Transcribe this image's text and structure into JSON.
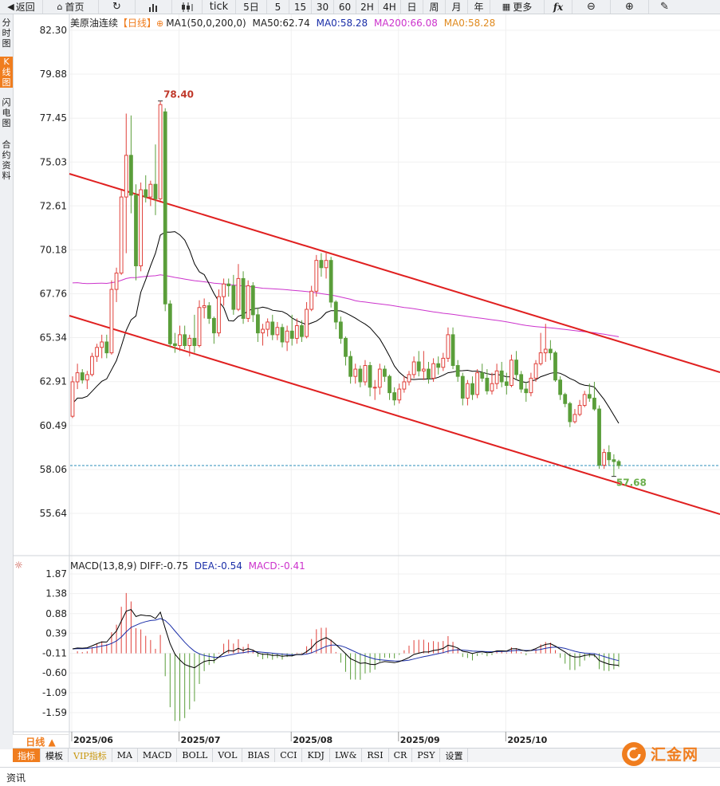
{
  "toolbar": {
    "back_label": "返回",
    "home_label": "首页",
    "tick_label": "tick",
    "periods": [
      "5日",
      "5",
      "15",
      "30",
      "60",
      "2H",
      "4H",
      "日",
      "周",
      "月",
      "年"
    ],
    "more_label": "更多",
    "fx_label": "fx"
  },
  "side_tabs": {
    "timeshare": "分时图",
    "kline": "K线图",
    "flash": "闪电图",
    "contract": "合约资料"
  },
  "legend": {
    "name": "美原油连续",
    "period": "【日线】",
    "ma_spec": "MA1(50,0,200,0)",
    "ma50": "MA50:62.74",
    "ma0_a": "MA0:58.28",
    "ma200": "MA200:66.08",
    "ma0_b": "MA0:58.28"
  },
  "macd_legend": {
    "spec": "MACD(13,8,9)",
    "diff": "DIFF:-0.75",
    "dea": "DEA:-0.54",
    "macd": "MACD:-0.41"
  },
  "bottom": {
    "day_line": "日线 ▲",
    "tabs": [
      "指标",
      "模板",
      "VIP指标",
      "MA",
      "MACD",
      "BOLL",
      "VOL",
      "BIAS",
      "CCI",
      "KDJ",
      "LW&",
      "RSI",
      "CR",
      "PSY",
      "设置"
    ],
    "info_tab": "资讯",
    "logo_text": "汇金网"
  },
  "colors": {
    "up": "#e0413b",
    "down": "#5a9e3a",
    "ma50": "#000000",
    "ma200": "#cc33cc",
    "channel": "#e02020",
    "accent": "#f07d1e",
    "last_line": "#2b8fb8"
  },
  "chart_data": {
    "type": "candlestick",
    "y_ticks": [
      "82.30",
      "79.88",
      "77.45",
      "75.03",
      "72.61",
      "70.18",
      "67.76",
      "65.34",
      "62.91",
      "60.49",
      "58.06",
      "55.64"
    ],
    "x_ticks": [
      "2025/06",
      "2025/07",
      "2025/08",
      "2025/09",
      "2025/10"
    ],
    "high_label": "78.40",
    "low_label": "57.68",
    "last_price": 58.28,
    "candles": [
      [
        61.0,
        63.2,
        60.9,
        62.9
      ],
      [
        62.9,
        63.9,
        62.5,
        63.4
      ],
      [
        63.4,
        63.6,
        62.8,
        63.0
      ],
      [
        63.0,
        63.5,
        62.5,
        63.3
      ],
      [
        63.3,
        64.5,
        63.2,
        64.3
      ],
      [
        64.3,
        65.0,
        64.0,
        64.8
      ],
      [
        64.8,
        65.5,
        64.2,
        65.1
      ],
      [
        65.1,
        65.5,
        64.2,
        64.5
      ],
      [
        64.5,
        68.5,
        64.4,
        68.0
      ],
      [
        68.0,
        69.2,
        67.3,
        68.9
      ],
      [
        68.9,
        73.5,
        68.8,
        73.1
      ],
      [
        73.1,
        77.7,
        70.0,
        75.4
      ],
      [
        75.4,
        77.6,
        72.2,
        73.2
      ],
      [
        73.2,
        73.8,
        68.5,
        69.3
      ],
      [
        69.3,
        73.9,
        69.0,
        73.5
      ],
      [
        73.5,
        74.3,
        72.8,
        73.1
      ],
      [
        73.1,
        74.0,
        72.6,
        73.8
      ],
      [
        73.8,
        76.0,
        72.1,
        73.0
      ],
      [
        73.0,
        78.4,
        72.9,
        78.2
      ],
      [
        77.8,
        78.0,
        66.8,
        67.2
      ],
      [
        67.2,
        67.4,
        64.8,
        65.0
      ],
      [
        65.0,
        65.6,
        64.5,
        64.9
      ],
      [
        64.9,
        66.0,
        64.6,
        65.5
      ],
      [
        65.5,
        66.0,
        64.7,
        64.9
      ],
      [
        64.9,
        65.5,
        64.3,
        65.3
      ],
      [
        65.3,
        66.6,
        64.5,
        64.9
      ],
      [
        64.9,
        67.4,
        64.8,
        67.0
      ],
      [
        67.0,
        67.5,
        66.4,
        67.1
      ],
      [
        67.1,
        67.3,
        66.1,
        66.4
      ],
      [
        66.4,
        66.5,
        65.0,
        65.6
      ],
      [
        65.6,
        68.0,
        65.4,
        67.6
      ],
      [
        67.6,
        68.6,
        67.1,
        68.3
      ],
      [
        68.3,
        68.6,
        67.6,
        68.2
      ],
      [
        68.2,
        68.8,
        66.6,
        66.9
      ],
      [
        66.9,
        69.4,
        66.8,
        68.6
      ],
      [
        68.6,
        69.0,
        66.1,
        66.4
      ],
      [
        66.4,
        68.5,
        66.2,
        68.2
      ],
      [
        68.2,
        68.4,
        66.2,
        66.6
      ],
      [
        66.6,
        67.0,
        65.1,
        65.6
      ],
      [
        65.6,
        66.1,
        64.9,
        65.8
      ],
      [
        65.8,
        66.4,
        65.4,
        66.2
      ],
      [
        66.2,
        66.6,
        65.2,
        65.5
      ],
      [
        65.5,
        66.2,
        65.2,
        65.9
      ],
      [
        65.9,
        66.1,
        64.8,
        65.1
      ],
      [
        65.1,
        66.0,
        64.6,
        65.7
      ],
      [
        65.7,
        66.6,
        64.9,
        65.3
      ],
      [
        65.3,
        66.4,
        65.0,
        66.0
      ],
      [
        66.0,
        66.3,
        65.1,
        65.4
      ],
      [
        65.4,
        67.3,
        65.3,
        66.9
      ],
      [
        66.9,
        68.2,
        66.8,
        67.9
      ],
      [
        67.9,
        69.9,
        67.6,
        69.6
      ],
      [
        69.6,
        70.0,
        68.7,
        69.2
      ],
      [
        69.2,
        70.1,
        68.6,
        69.6
      ],
      [
        69.6,
        69.8,
        67.0,
        67.3
      ],
      [
        67.3,
        67.4,
        65.8,
        66.2
      ],
      [
        66.2,
        66.5,
        65.0,
        65.3
      ],
      [
        65.3,
        65.4,
        63.8,
        64.3
      ],
      [
        64.3,
        64.6,
        62.8,
        63.2
      ],
      [
        63.2,
        63.9,
        62.8,
        63.6
      ],
      [
        63.6,
        63.8,
        62.6,
        62.9
      ],
      [
        62.9,
        64.1,
        62.7,
        63.8
      ],
      [
        63.8,
        64.0,
        62.1,
        62.6
      ],
      [
        62.6,
        63.0,
        61.9,
        62.6
      ],
      [
        62.6,
        63.9,
        62.2,
        63.6
      ],
      [
        63.6,
        63.8,
        62.9,
        63.2
      ],
      [
        63.2,
        63.3,
        61.9,
        62.3
      ],
      [
        62.3,
        62.6,
        61.6,
        61.9
      ],
      [
        61.9,
        62.8,
        61.7,
        62.5
      ],
      [
        62.5,
        63.2,
        62.3,
        62.9
      ],
      [
        62.9,
        63.5,
        62.7,
        63.3
      ],
      [
        63.3,
        64.3,
        63.1,
        64.0
      ],
      [
        64.0,
        64.6,
        63.2,
        63.5
      ],
      [
        63.5,
        64.6,
        63.0,
        63.6
      ],
      [
        63.6,
        64.0,
        62.8,
        63.1
      ],
      [
        63.1,
        64.2,
        62.9,
        63.9
      ],
      [
        63.9,
        64.3,
        63.3,
        63.7
      ],
      [
        63.7,
        64.5,
        63.5,
        64.2
      ],
      [
        64.2,
        65.9,
        64.0,
        65.5
      ],
      [
        65.5,
        65.9,
        63.6,
        63.8
      ],
      [
        63.8,
        64.1,
        62.9,
        63.2
      ],
      [
        63.2,
        63.4,
        61.6,
        62.0
      ],
      [
        62.0,
        63.0,
        61.6,
        62.8
      ],
      [
        62.8,
        63.2,
        61.9,
        62.2
      ],
      [
        62.2,
        63.6,
        62.0,
        63.4
      ],
      [
        63.4,
        63.9,
        62.9,
        63.1
      ],
      [
        63.1,
        63.6,
        62.2,
        62.4
      ],
      [
        62.4,
        63.4,
        62.2,
        62.8
      ],
      [
        62.8,
        63.9,
        62.5,
        63.5
      ],
      [
        63.5,
        64.0,
        62.6,
        62.9
      ],
      [
        62.9,
        63.4,
        62.2,
        62.7
      ],
      [
        62.7,
        64.4,
        62.6,
        64.1
      ],
      [
        64.1,
        64.6,
        63.0,
        63.3
      ],
      [
        63.3,
        63.5,
        62.3,
        62.5
      ],
      [
        62.5,
        62.9,
        61.8,
        62.3
      ],
      [
        62.3,
        63.4,
        62.1,
        63.1
      ],
      [
        63.1,
        64.1,
        62.9,
        63.9
      ],
      [
        63.9,
        65.6,
        63.8,
        64.5
      ],
      [
        64.5,
        66.1,
        64.0,
        64.7
      ],
      [
        64.7,
        65.2,
        64.1,
        64.5
      ],
      [
        64.5,
        64.6,
        62.9,
        63.0
      ],
      [
        63.0,
        63.2,
        61.9,
        62.2
      ],
      [
        62.2,
        62.3,
        61.5,
        61.7
      ],
      [
        61.7,
        61.8,
        60.4,
        60.7
      ],
      [
        60.7,
        61.4,
        60.6,
        61.1
      ],
      [
        61.1,
        61.9,
        61.0,
        61.6
      ],
      [
        61.6,
        62.4,
        61.5,
        62.2
      ],
      [
        62.2,
        62.8,
        61.8,
        62.0
      ],
      [
        62.0,
        62.9,
        61.3,
        61.4
      ],
      [
        61.4,
        61.6,
        58.1,
        58.3
      ],
      [
        58.3,
        59.2,
        58.1,
        59.0
      ],
      [
        59.0,
        59.4,
        58.3,
        58.6
      ],
      [
        58.6,
        58.9,
        57.68,
        58.5
      ],
      [
        58.5,
        58.6,
        58.1,
        58.28
      ]
    ]
  }
}
